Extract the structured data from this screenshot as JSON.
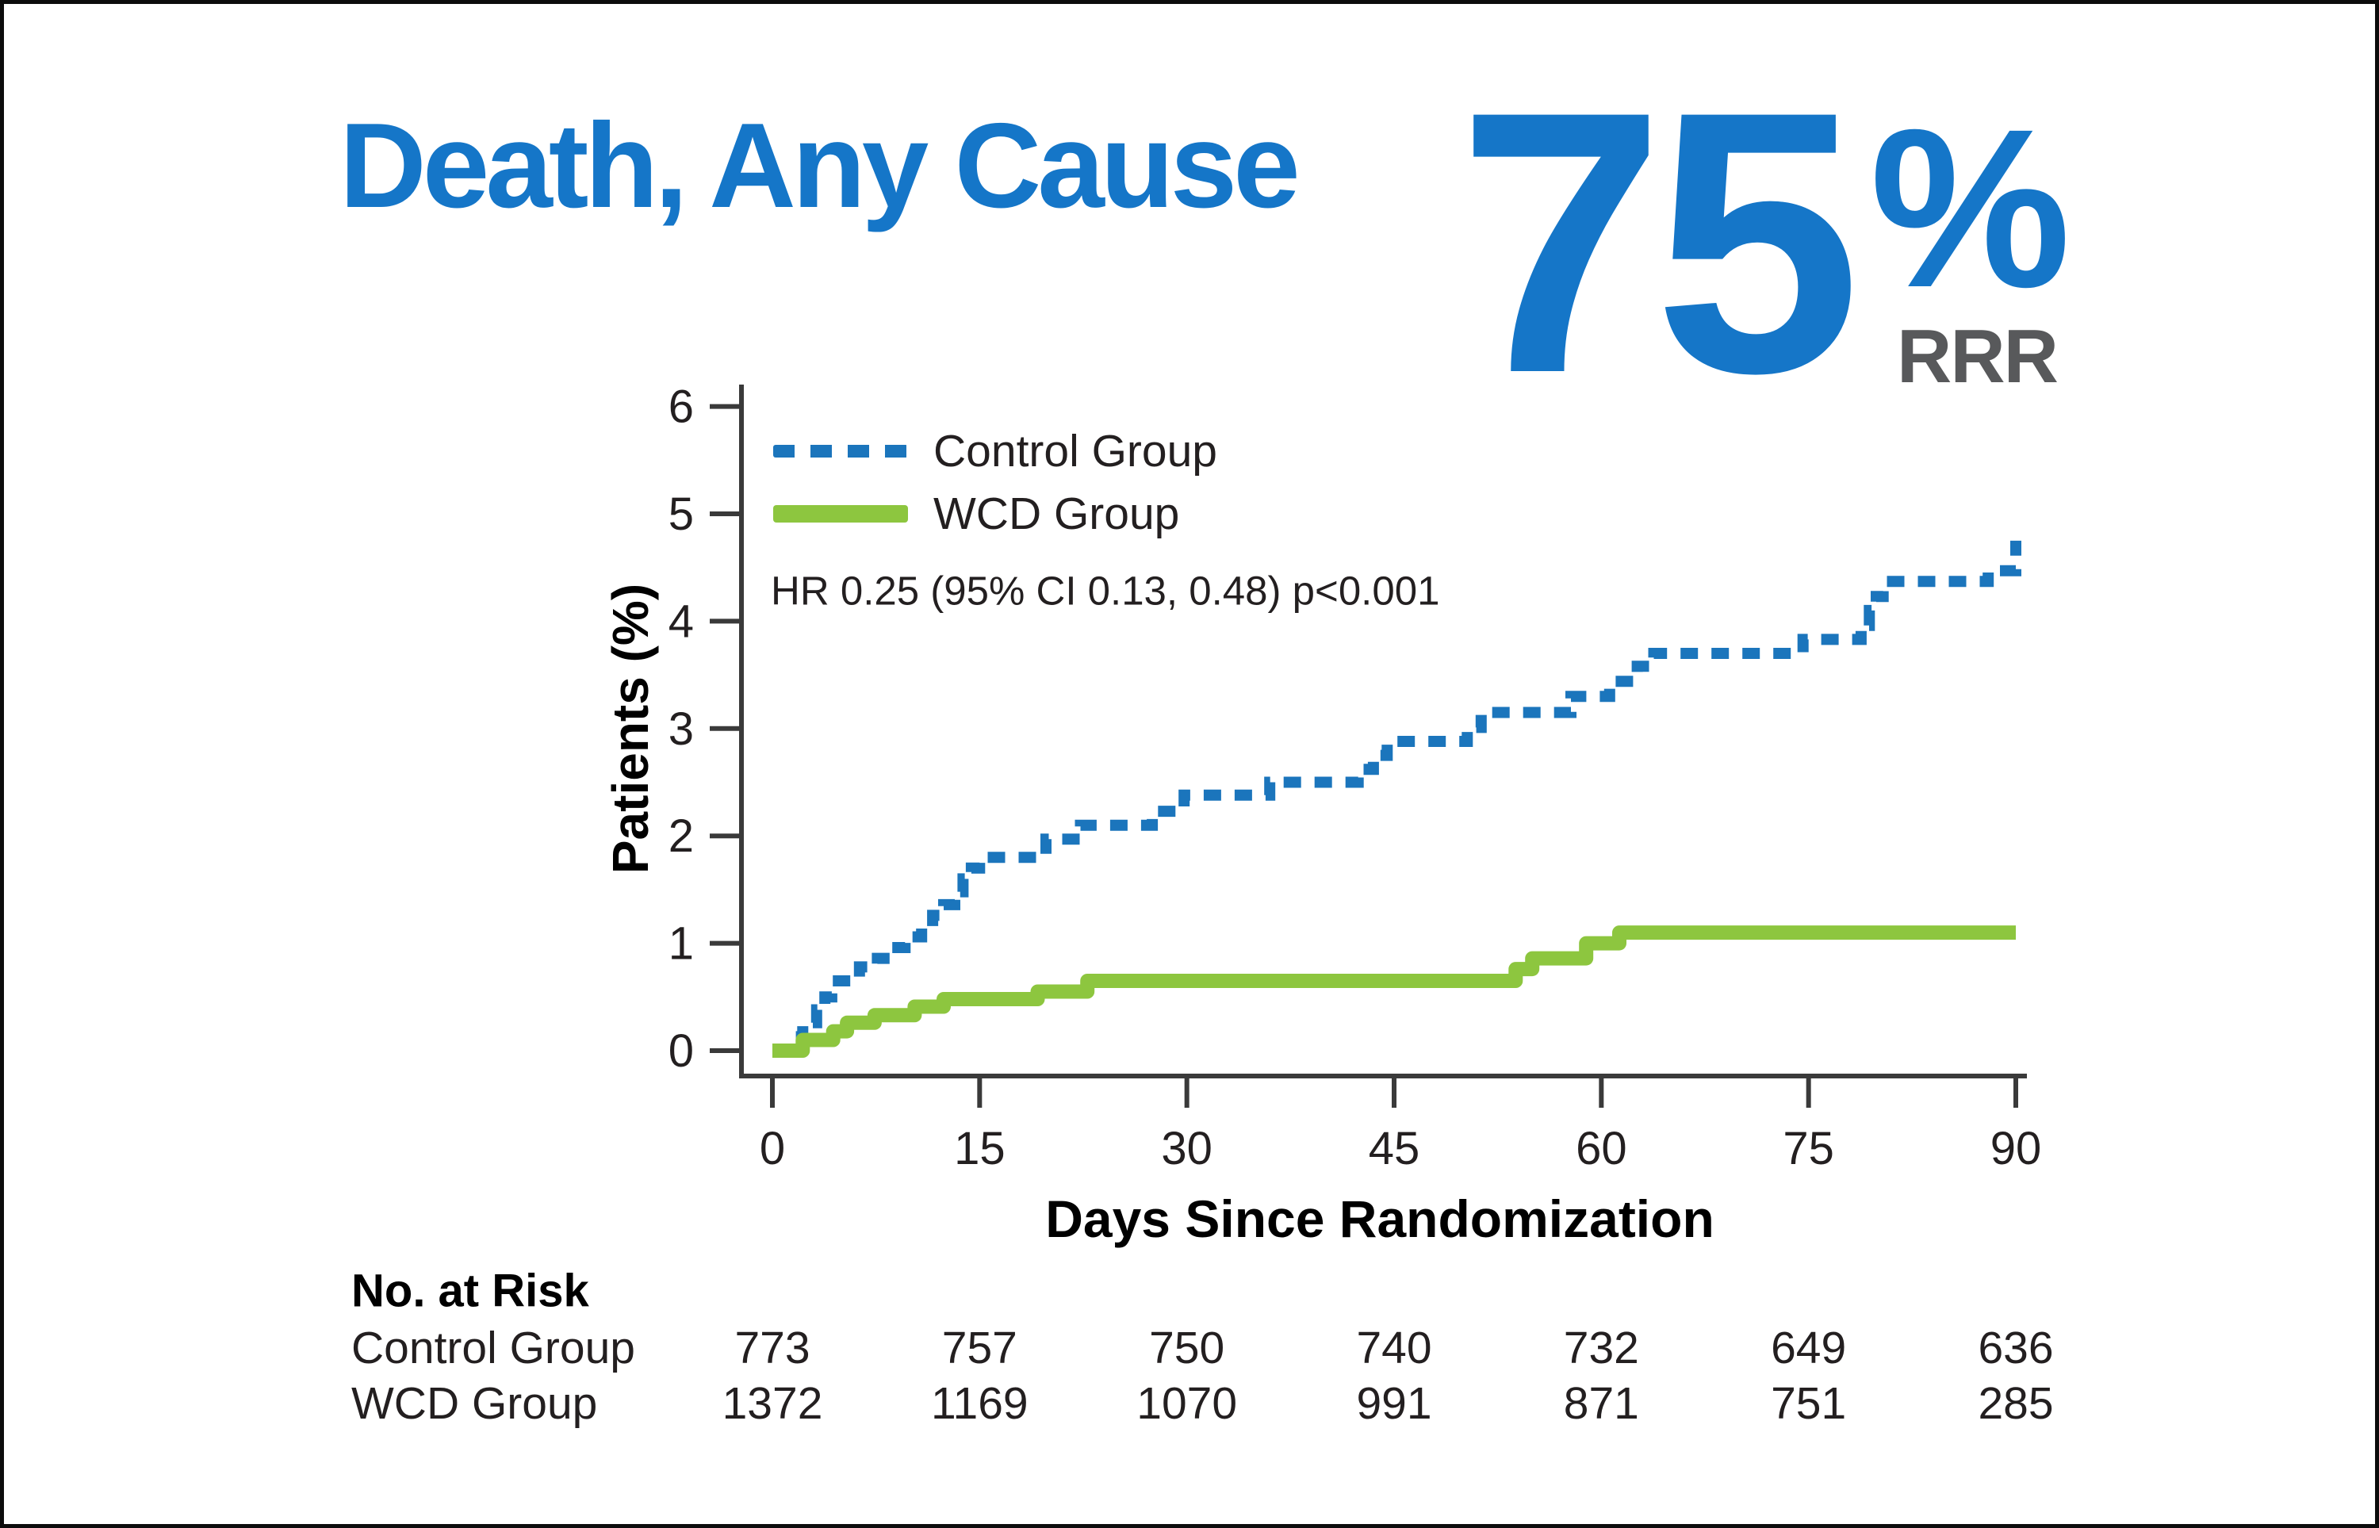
{
  "header": {
    "title": "Death, Any Cause",
    "stat_value": "75",
    "stat_unit": "%",
    "stat_label": "RRR"
  },
  "chart_data": {
    "type": "line",
    "subtype": "kaplan-meier-step",
    "title": "Death, Any Cause",
    "xlabel": "Days Since Randomization",
    "ylabel": "Patients (%)",
    "xlim": [
      0,
      90
    ],
    "ylim": [
      0,
      6
    ],
    "x_ticks": [
      0,
      15,
      30,
      45,
      60,
      75,
      90
    ],
    "y_ticks": [
      0,
      1,
      2,
      3,
      4,
      5,
      6
    ],
    "grid": false,
    "legend_position": "top-left-inside",
    "annotation": "HR 0.25 (95% CI 0.13, 0.48) p<0.001",
    "series": [
      {
        "name": "Control Group",
        "style": "dashed",
        "color": "#1B75BC",
        "step_points": [
          [
            1.7,
            0.13
          ],
          [
            2.2,
            0.26
          ],
          [
            3.2,
            0.38
          ],
          [
            3.8,
            0.5
          ],
          [
            4.3,
            0.65
          ],
          [
            6.3,
            0.78
          ],
          [
            7.6,
            0.86
          ],
          [
            8.6,
            0.96
          ],
          [
            9.6,
            1.06
          ],
          [
            10.8,
            1.16
          ],
          [
            11.6,
            1.26
          ],
          [
            12.4,
            1.36
          ],
          [
            13.2,
            1.48
          ],
          [
            13.8,
            1.6
          ],
          [
            14.4,
            1.7
          ],
          [
            15.0,
            1.8
          ],
          [
            19.8,
            1.97
          ],
          [
            22.3,
            2.1
          ],
          [
            27.5,
            2.23
          ],
          [
            29.8,
            2.38
          ],
          [
            36.0,
            2.5
          ],
          [
            42.4,
            2.62
          ],
          [
            43.5,
            2.75
          ],
          [
            44.5,
            2.88
          ],
          [
            50.3,
            3.01
          ],
          [
            51.3,
            3.15
          ],
          [
            57.8,
            3.3
          ],
          [
            60.6,
            3.44
          ],
          [
            62.6,
            3.58
          ],
          [
            63.8,
            3.7
          ],
          [
            74.6,
            3.83
          ],
          [
            78.8,
            3.96
          ],
          [
            79.4,
            4.1
          ],
          [
            79.9,
            4.23
          ],
          [
            80.4,
            4.37
          ],
          [
            88.0,
            4.47
          ],
          [
            90.0,
            4.75
          ]
        ]
      },
      {
        "name": "WCD Group",
        "style": "solid",
        "color": "#8DC63F",
        "step_points": [
          [
            0,
            0
          ],
          [
            2.2,
            0.1
          ],
          [
            4.4,
            0.18
          ],
          [
            5.4,
            0.26
          ],
          [
            7.4,
            0.33
          ],
          [
            10.3,
            0.41
          ],
          [
            12.4,
            0.48
          ],
          [
            19.2,
            0.55
          ],
          [
            22.8,
            0.65
          ],
          [
            53.8,
            0.76
          ],
          [
            55.0,
            0.86
          ],
          [
            58.9,
            1.0
          ],
          [
            61.3,
            1.1
          ],
          [
            90.0,
            1.1
          ]
        ]
      }
    ]
  },
  "risk_table": {
    "title": "No. at Risk",
    "time_points": [
      0,
      15,
      30,
      45,
      60,
      75,
      90
    ],
    "rows": [
      {
        "label": "Control Group",
        "values": [
          773,
          757,
          750,
          740,
          732,
          649,
          636
        ]
      },
      {
        "label": "WCD Group",
        "values": [
          1372,
          1169,
          1070,
          991,
          871,
          751,
          285
        ]
      }
    ]
  },
  "colors": {
    "title_blue": "#1576C8",
    "stat_blue": "#1576C8",
    "curve_blue": "#1B75BC",
    "wcd_green": "#8DC63F",
    "stat_gray": "#58595B",
    "ink": "#231F20",
    "axis": "#3A3A3A"
  }
}
